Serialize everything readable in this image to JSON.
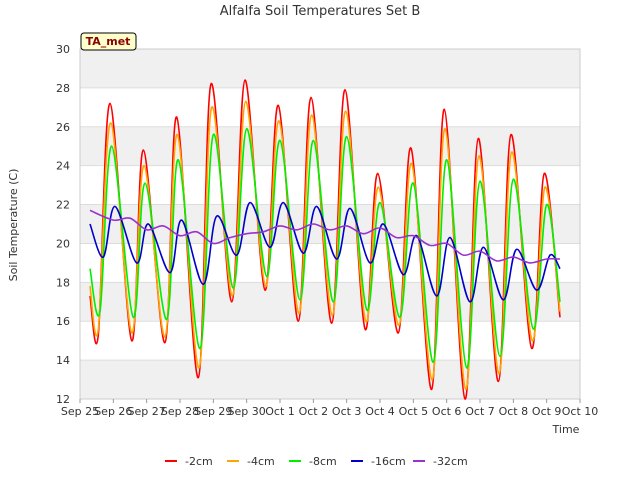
{
  "chart_data": {
    "type": "line",
    "title": "Alfalfa Soil Temperatures Set B",
    "xlabel": "Time",
    "ylabel": "Soil Temperature (C)",
    "badge": "TA_met",
    "ylim": [
      12,
      30
    ],
    "xlim": [
      0,
      15
    ],
    "yticks": [
      12,
      14,
      16,
      18,
      20,
      22,
      24,
      26,
      28,
      30
    ],
    "grid": true,
    "legend_position": "bottom",
    "x_tick_labels": [
      "Sep 25",
      "Sep 26",
      "Sep 27",
      "Sep 28",
      "Sep 29",
      "Sep 30",
      "Oct 1",
      "Oct 2",
      "Oct 3",
      "Oct 4",
      "Oct 5",
      "Oct 6",
      "Oct 7",
      "Oct 8",
      "Oct 9",
      "Oct 10"
    ],
    "series": [
      {
        "name": "-2cm",
        "color": "#ff0000",
        "x": [
          0.3,
          0.55,
          0.9,
          1.55,
          1.9,
          2.55,
          2.9,
          3.55,
          3.93,
          4.55,
          4.95,
          5.55,
          5.95,
          6.55,
          6.93,
          7.55,
          7.95,
          8.55,
          8.93,
          9.55,
          9.93,
          10.55,
          10.93,
          11.55,
          11.95,
          12.55,
          12.93,
          13.55,
          13.93,
          14.4
        ],
        "y": [
          17.3,
          15.3,
          27.2,
          15.0,
          24.8,
          14.9,
          26.5,
          13.1,
          28.2,
          17.0,
          28.4,
          17.6,
          27.1,
          16.0,
          27.5,
          15.9,
          27.9,
          15.6,
          23.6,
          15.4,
          24.9,
          12.5,
          26.9,
          12.0,
          25.4,
          12.9,
          25.6,
          14.6,
          23.6,
          16.2
        ]
      },
      {
        "name": "-4cm",
        "color": "#ffa500",
        "x": [
          0.3,
          0.55,
          0.92,
          1.55,
          1.92,
          2.55,
          2.92,
          3.57,
          3.95,
          4.57,
          4.97,
          5.57,
          5.97,
          6.57,
          6.95,
          7.57,
          7.97,
          8.57,
          8.95,
          9.57,
          9.95,
          10.57,
          10.95,
          11.57,
          11.97,
          12.57,
          12.95,
          13.57,
          13.95,
          14.4
        ],
        "y": [
          17.8,
          15.6,
          26.2,
          15.4,
          24.0,
          15.2,
          25.6,
          13.6,
          27.0,
          17.3,
          27.3,
          17.8,
          26.3,
          16.4,
          26.6,
          16.3,
          26.8,
          16.0,
          22.9,
          15.8,
          24.1,
          13.0,
          25.9,
          12.5,
          24.5,
          13.3,
          24.7,
          15.0,
          22.9,
          16.5
        ]
      },
      {
        "name": "-8cm",
        "color": "#00ee00",
        "x": [
          0.3,
          0.6,
          0.95,
          1.6,
          1.95,
          2.6,
          2.95,
          3.6,
          4.0,
          4.6,
          5.0,
          5.6,
          6.0,
          6.6,
          7.0,
          7.6,
          8.0,
          8.6,
          9.0,
          9.6,
          10.0,
          10.6,
          11.0,
          11.6,
          12.0,
          12.6,
          13.0,
          13.6,
          14.0,
          14.4
        ],
        "y": [
          18.7,
          16.5,
          25.0,
          16.2,
          23.1,
          16.1,
          24.3,
          14.6,
          25.6,
          17.7,
          25.9,
          18.3,
          25.3,
          17.1,
          25.3,
          17.0,
          25.5,
          16.6,
          22.1,
          16.2,
          23.1,
          13.9,
          24.3,
          13.6,
          23.2,
          14.2,
          23.3,
          15.6,
          22.0,
          17.0
        ]
      },
      {
        "name": "-16cm",
        "color": "#0000cc",
        "x": [
          0.3,
          0.7,
          1.05,
          1.7,
          2.05,
          2.7,
          3.05,
          3.7,
          4.1,
          4.7,
          5.1,
          5.7,
          6.1,
          6.7,
          7.1,
          7.7,
          8.1,
          8.7,
          9.1,
          9.7,
          10.1,
          10.7,
          11.1,
          11.7,
          12.1,
          12.7,
          13.1,
          13.7,
          14.1,
          14.4
        ],
        "y": [
          21.0,
          19.3,
          21.9,
          19.0,
          21.0,
          18.5,
          21.2,
          17.9,
          21.4,
          19.4,
          22.1,
          19.8,
          22.1,
          19.5,
          21.9,
          19.2,
          21.8,
          19.0,
          21.0,
          18.4,
          20.4,
          17.3,
          20.3,
          17.0,
          19.8,
          17.1,
          19.7,
          17.6,
          19.4,
          18.7
        ]
      },
      {
        "name": "-32cm",
        "color": "#9933cc",
        "x": [
          0.3,
          1.0,
          1.5,
          2.0,
          2.5,
          3.0,
          3.5,
          4.0,
          4.5,
          5.0,
          5.5,
          6.0,
          6.5,
          7.0,
          7.5,
          8.0,
          8.5,
          9.0,
          9.5,
          10.0,
          10.5,
          11.0,
          11.5,
          12.0,
          12.5,
          13.0,
          13.5,
          14.0,
          14.4
        ],
        "y": [
          21.7,
          21.2,
          21.3,
          20.7,
          20.9,
          20.4,
          20.6,
          20.0,
          20.3,
          20.5,
          20.6,
          20.9,
          20.7,
          21.0,
          20.7,
          20.9,
          20.5,
          20.8,
          20.3,
          20.4,
          19.9,
          20.0,
          19.4,
          19.6,
          19.1,
          19.3,
          19.0,
          19.2,
          19.2
        ]
      }
    ]
  }
}
